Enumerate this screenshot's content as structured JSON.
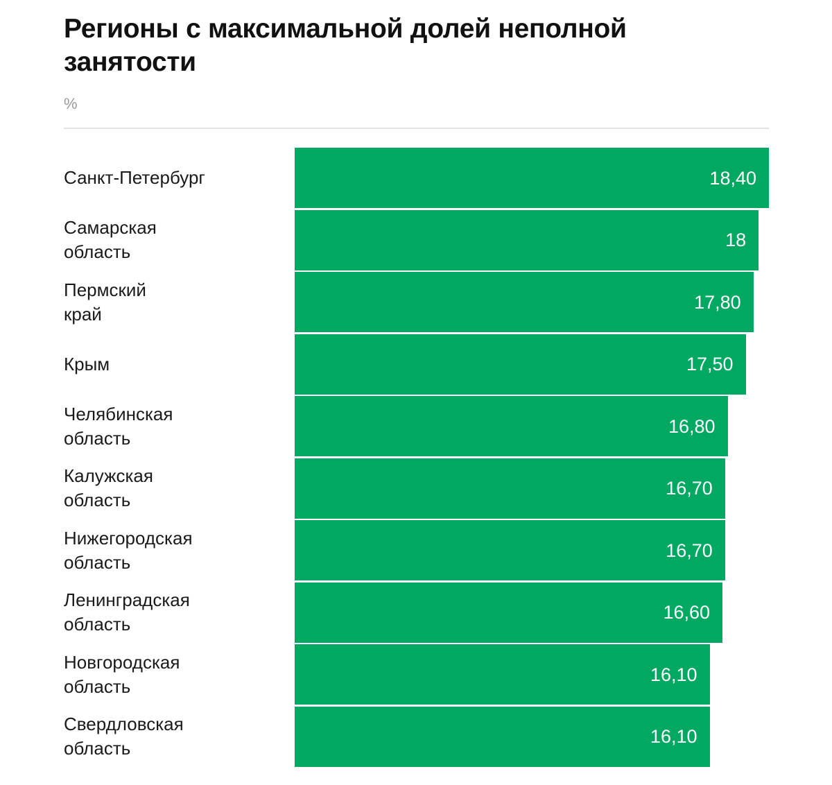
{
  "chart_data": {
    "type": "bar",
    "orientation": "horizontal",
    "title": "Регионы с максимальной долей неполной занятости",
    "unit_label": "%",
    "bar_color": "#00a862",
    "categories": [
      "Санкт-Петербург",
      "Самарская\nобласть",
      "Пермский\nкрай",
      "Крым",
      "Челябинская\nобласть",
      "Калужская\nобласть",
      "Нижегородская\nобласть",
      "Ленинградская\nобласть",
      "Новгородская\nобласть",
      "Свердловская\nобласть"
    ],
    "values": [
      18.4,
      18,
      17.8,
      17.5,
      16.8,
      16.7,
      16.7,
      16.6,
      16.1,
      16.1
    ],
    "value_labels": [
      "18,40",
      "18",
      "17,80",
      "17,50",
      "16,80",
      "16,70",
      "16,70",
      "16,60",
      "16,10",
      "16,10"
    ],
    "grid": false,
    "legend": "none"
  }
}
